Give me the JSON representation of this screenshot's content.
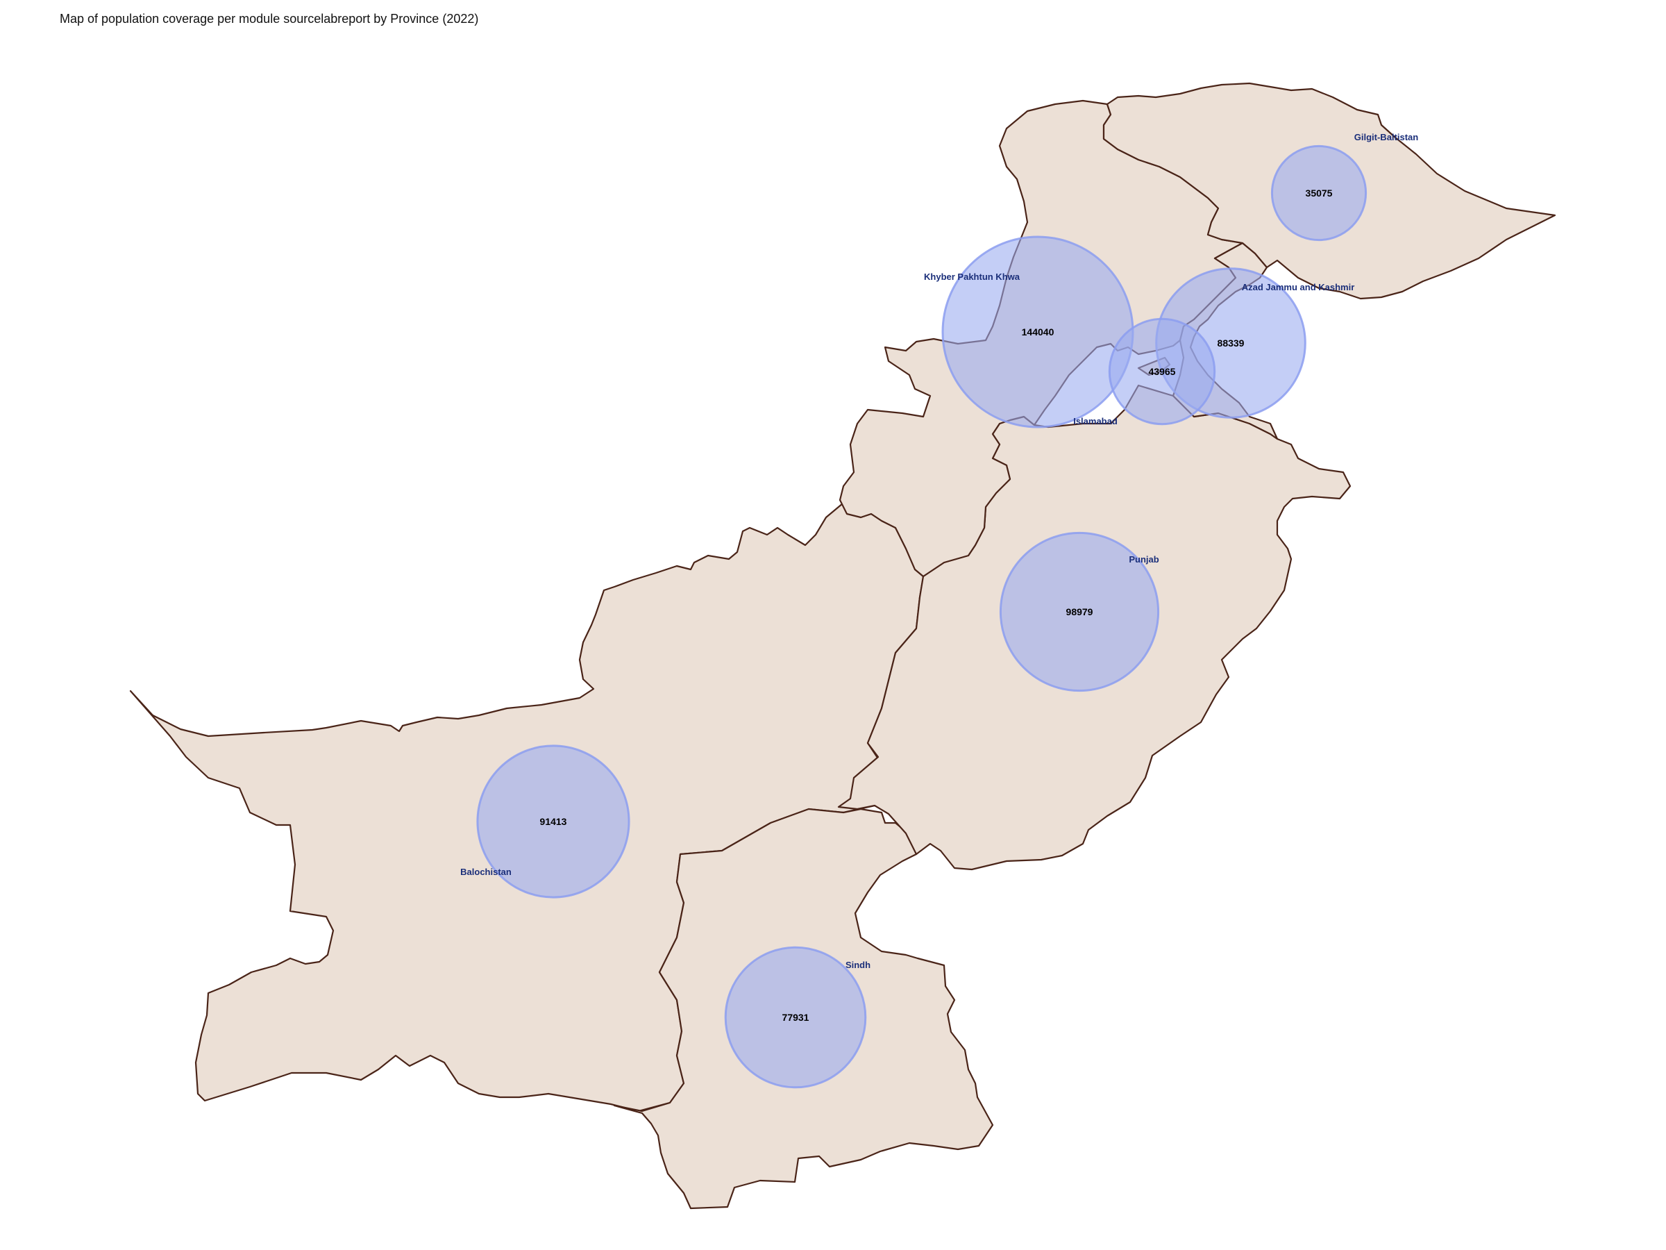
{
  "title": "Map of population coverage per module sourcelabreport by Province (2022)",
  "colors": {
    "land": "#ece0d6",
    "border": "#4a2418",
    "bubble": "#9aaaf0",
    "label": "#1b2f7a"
  },
  "map_data": {
    "type": "proportional-symbol-map",
    "regions": [
      {
        "id": "balochistan",
        "name": "Balochistan",
        "value": 91413
      },
      {
        "id": "sindh",
        "name": "Sindh",
        "value": 77931
      },
      {
        "id": "punjab",
        "name": "Punjab",
        "value": 98979
      },
      {
        "id": "khyber-pakhtun-khwa",
        "name": "Khyber Pakhtun Khwa",
        "value": 144040
      },
      {
        "id": "islamabad",
        "name": "Islamabad",
        "value": 43965
      },
      {
        "id": "azad-jammu-and-kashmir",
        "name": "Azad Jammu and Kashmir",
        "value": 88339
      },
      {
        "id": "gilgit-baltistan",
        "name": "Gilgit-Baltistan",
        "value": 35075
      }
    ]
  }
}
